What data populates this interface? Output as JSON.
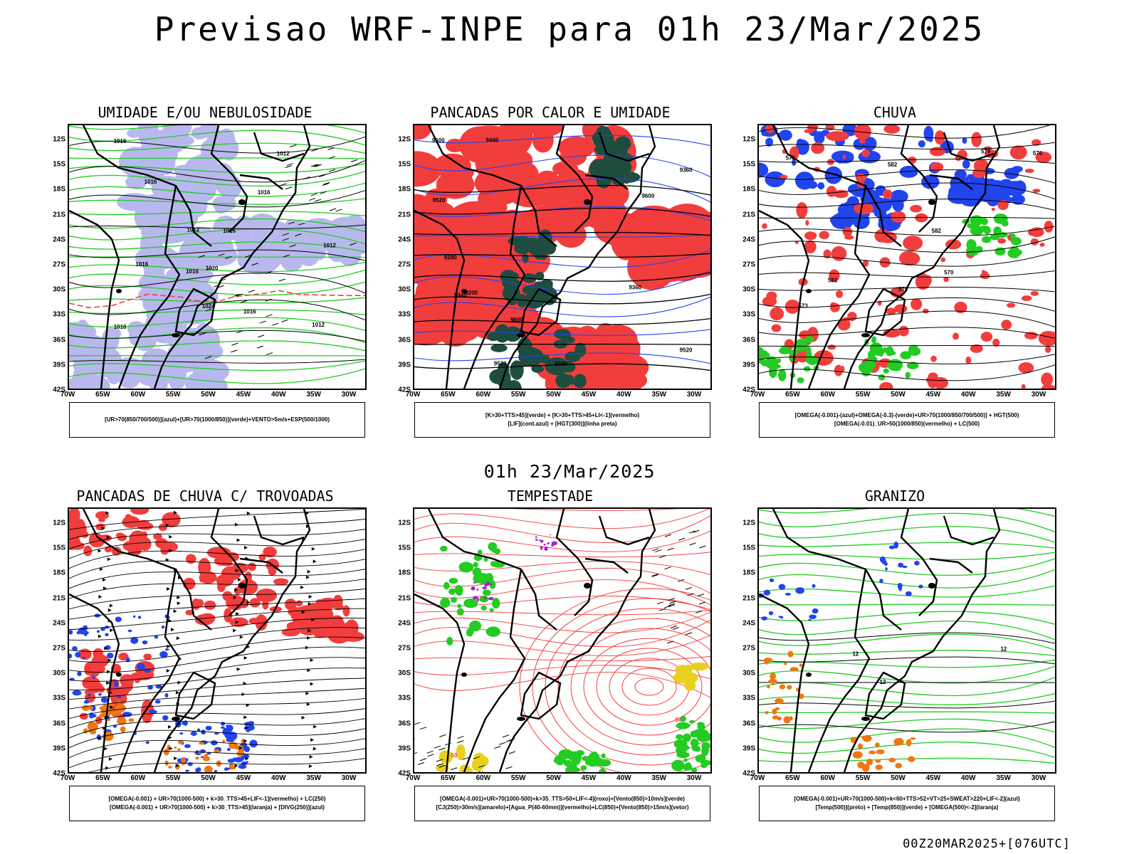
{
  "page": {
    "title": "Previsao WRF-INPE  para 01h 23/Mar/2025",
    "subtitle": "01h 23/Mar/2025",
    "footer": "00Z20MAR2025+[076UTC]"
  },
  "axes": {
    "lat_labels": [
      "12S",
      "15S",
      "18S",
      "21S",
      "24S",
      "27S",
      "30S",
      "33S",
      "36S",
      "39S",
      "42S"
    ],
    "lon_labels": [
      "70W",
      "65W",
      "60W",
      "55W",
      "50W",
      "45W",
      "40W",
      "35W",
      "30W"
    ]
  },
  "colors": {
    "red": "#f23d3d",
    "green": "#22cc22",
    "blue": "#2244ee",
    "lavender": "#b8b8ee",
    "darkteal": "#1e4d40",
    "orange": "#ee7711",
    "yellow": "#e8d020",
    "purple": "#aa22cc",
    "black": "#000000"
  },
  "panels": [
    {
      "id": "umidade",
      "title": "UMIDADE E/OU NEBULOSIDADE",
      "legend": [
        "[UR>70(850/700/500)](azul)+[UR>70(1000/850)](verde)+VENTO>5m/s+ESP(500/1000)"
      ],
      "contour_labels": [
        "1016",
        "1012",
        "1016",
        "1016",
        "1012",
        "1012",
        "1016",
        "1016",
        "1016",
        "1012",
        "1016",
        "1020",
        "1024",
        "1016"
      ]
    },
    {
      "id": "pancadas-calor",
      "title": "PANCADAS POR CALOR E UMIDADE",
      "legend": [
        "[K>30+TTS>45](verde) + [K>30+TTS>45+LI<-1](vermelho)",
        "[LIF](cont.azul) + [HGT(300)](linha preta)"
      ],
      "contour_labels": [
        "9600",
        "9600",
        "9600",
        "9600",
        "9520",
        "9520",
        "9520",
        "9440",
        "9440",
        "9360",
        "9280",
        "9200",
        "9360"
      ]
    },
    {
      "id": "chuva",
      "title": "CHUVA",
      "legend": [
        "[OMEGA(-0.001)-(azul)+OMEGA(-0.3)-(verde)+UR>70(1000/850/700/500)] + HGT(500)",
        "[OMEGA(-0.01)_UR>50(1000/850)(vermelho) + LC(500)"
      ],
      "contour_labels": [
        "582",
        "582",
        "579",
        "582",
        "576",
        "579",
        "576",
        "573",
        "570"
      ]
    },
    {
      "id": "pancadas-trovoadas",
      "title": "PANCADAS DE CHUVA C/ TROVOADAS",
      "legend": [
        "[OMEGA(-0.001) + UR>70(1000-500) + k>30_TTS>45+LIF<-1](vermelho) + LC(250)",
        "[OMEGA(-0.001) + UR>70(1000-500) + k>30_TTS>45](laranja) + [DIVG(250)](azul)"
      ]
    },
    {
      "id": "tempestade",
      "title": "TEMPESTADE",
      "legend": [
        "[OMEGA(-0.001)+UR>70(1000-500)+k>35_TTS>50+LIF<-4](roxo)+[Vento(850)>10m/s](verde)",
        "[CJ(250)>30m/s](amarelo)+[Agua_P(40-60mm)](vermelho)+LC(850)+[Vento(850)>15m/s](vetor)"
      ],
      "contour_labels": [
        "50",
        "50"
      ]
    },
    {
      "id": "granizo",
      "title": "GRANIZO",
      "legend": [
        "[OMEGA(-0.001)+UR>70(1000-500)+k<60+TTS>52+VT>25+SWEAT>220+LIF<-2](azul)",
        "[Temp(500)](preto) + [Temp(850)](verde) + [OMEGA(500)<-2](laranja)"
      ],
      "contour_labels": [
        "12",
        "12",
        "12"
      ]
    }
  ]
}
